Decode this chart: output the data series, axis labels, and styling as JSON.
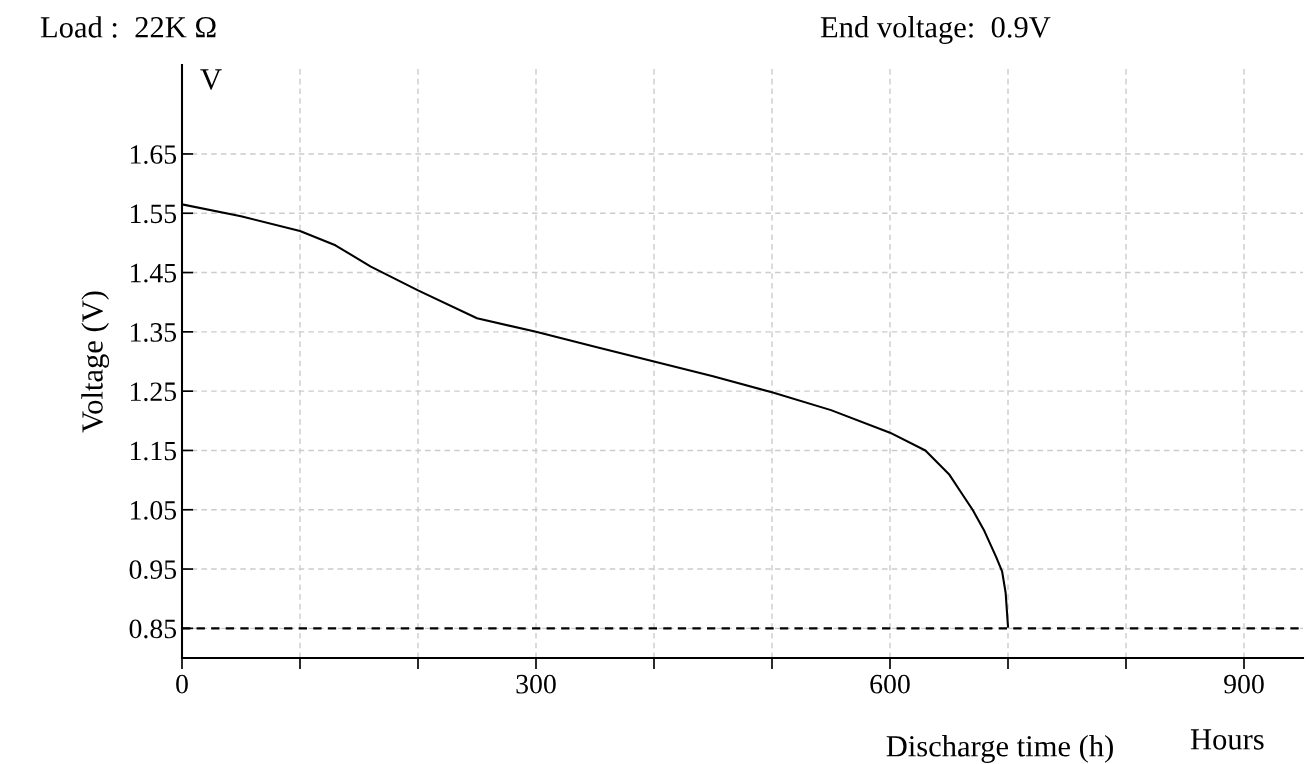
{
  "chart_data": {
    "type": "line",
    "xlabel": "Discharge time (h)",
    "ylabel": "Voltage (V)",
    "annotations": [
      "Load :  22K Ω",
      "End voltage:  0.9V",
      "V",
      "Hours"
    ],
    "x": [
      0,
      50,
      100,
      130,
      160,
      200,
      250,
      300,
      350,
      400,
      450,
      500,
      550,
      600,
      630,
      650,
      660,
      670,
      680,
      690,
      695,
      698,
      700
    ],
    "series": [
      {
        "color": "#000000",
        "values": [
          1.565,
          1.545,
          1.52,
          1.496,
          1.46,
          1.42,
          1.373,
          1.35,
          1.325,
          1.3,
          1.275,
          1.248,
          1.218,
          1.18,
          1.15,
          1.11,
          1.08,
          1.05,
          1.014,
          0.97,
          0.946,
          0.91,
          0.853
        ]
      }
    ],
    "xlim": [
      0,
      950
    ],
    "ylim": [
      0.8,
      1.8
    ],
    "xticks": [
      0,
      {
        "value": 100,
        "label": null
      },
      {
        "value": 200,
        "label": null
      },
      300,
      {
        "value": 400,
        "label": null
      },
      {
        "value": 500,
        "label": null
      },
      600,
      {
        "value": 700,
        "label": null
      },
      {
        "value": 800,
        "label": null
      },
      900
    ],
    "yticks": [
      0.85,
      0.95,
      1.05,
      1.15,
      1.25,
      1.35,
      1.45,
      1.55,
      1.65
    ],
    "ref_lines": [
      {
        "axis": "y",
        "value": 0.85,
        "label": null,
        "color": "#000000",
        "line_style": "dashed"
      }
    ],
    "grid": true,
    "legend": false,
    "marker": "none",
    "line_style": "solid"
  }
}
